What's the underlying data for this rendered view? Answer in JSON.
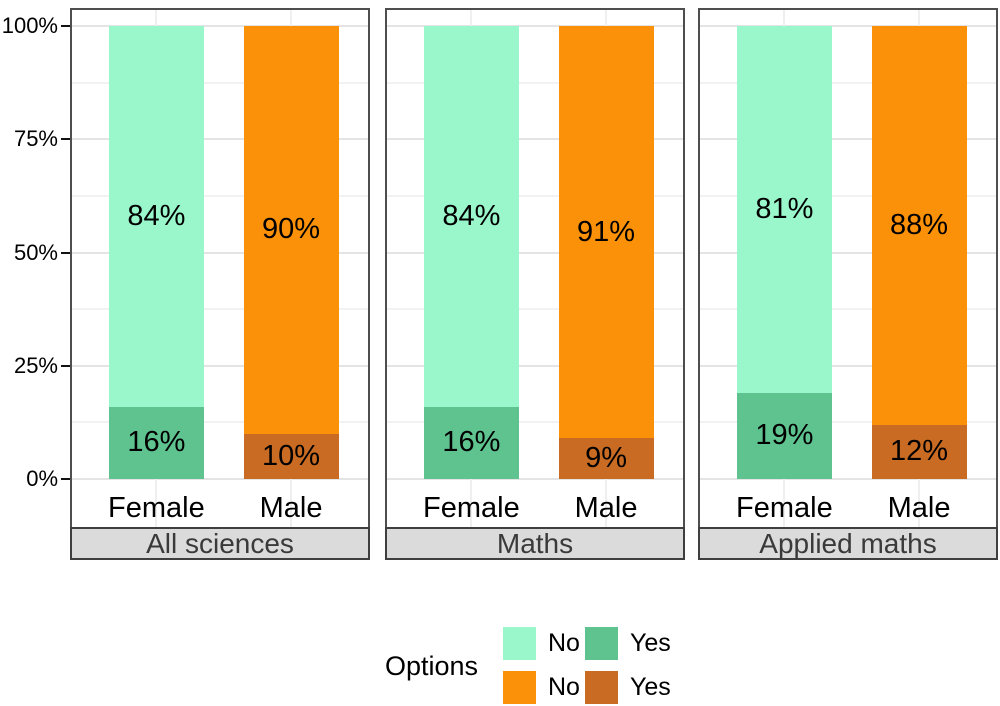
{
  "chart_data": {
    "type": "bar",
    "variant": "stacked-100-percent-faceted",
    "legend_title": "Options",
    "facets": [
      "All sciences",
      "Maths",
      "Applied maths"
    ],
    "categories": [
      "Female",
      "Male"
    ],
    "ylim": [
      0,
      100
    ],
    "yticks": [
      {
        "value": 0,
        "label": "0%"
      },
      {
        "value": 25,
        "label": "25%"
      },
      {
        "value": 50,
        "label": "50%"
      },
      {
        "value": 75,
        "label": "75%"
      },
      {
        "value": 100,
        "label": "100%"
      }
    ],
    "minor_ticks": [
      12.5,
      37.5,
      62.5,
      87.5
    ],
    "grid": true,
    "legend_position": "bottom",
    "panels": [
      {
        "facet": "All sciences",
        "bars": [
          {
            "category": "Female",
            "segments": [
              {
                "option": "Yes",
                "value": 16,
                "label": "16%",
                "color": "#5FC390"
              },
              {
                "option": "No",
                "value": 84,
                "label": "84%",
                "color": "#9AF7CB"
              }
            ]
          },
          {
            "category": "Male",
            "segments": [
              {
                "option": "Yes",
                "value": 10,
                "label": "10%",
                "color": "#C96B22"
              },
              {
                "option": "No",
                "value": 90,
                "label": "90%",
                "color": "#FB9109"
              }
            ]
          }
        ]
      },
      {
        "facet": "Maths",
        "bars": [
          {
            "category": "Female",
            "segments": [
              {
                "option": "Yes",
                "value": 16,
                "label": "16%",
                "color": "#5FC390"
              },
              {
                "option": "No",
                "value": 84,
                "label": "84%",
                "color": "#9AF7CB"
              }
            ]
          },
          {
            "category": "Male",
            "segments": [
              {
                "option": "Yes",
                "value": 9,
                "label": "9%",
                "color": "#C96B22"
              },
              {
                "option": "No",
                "value": 91,
                "label": "91%",
                "color": "#FB9109"
              }
            ]
          }
        ]
      },
      {
        "facet": "Applied maths",
        "bars": [
          {
            "category": "Female",
            "segments": [
              {
                "option": "Yes",
                "value": 19,
                "label": "19%",
                "color": "#5FC390"
              },
              {
                "option": "No",
                "value": 81,
                "label": "81%",
                "color": "#9AF7CB"
              }
            ]
          },
          {
            "category": "Male",
            "segments": [
              {
                "option": "Yes",
                "value": 12,
                "label": "12%",
                "color": "#C96B22"
              },
              {
                "option": "No",
                "value": 88,
                "label": "88%",
                "color": "#FB9109"
              }
            ]
          }
        ]
      }
    ]
  },
  "legend": {
    "title": "Options",
    "rows": [
      {
        "items": [
          {
            "label": "No",
            "color": "#9AF7CB"
          },
          {
            "label": "Yes",
            "color": "#5FC390"
          }
        ]
      },
      {
        "items": [
          {
            "label": "No",
            "color": "#FB9109"
          },
          {
            "label": "Yes",
            "color": "#C96B22"
          }
        ]
      }
    ]
  },
  "colors": {
    "background": "#FFFFFF",
    "panel_border": "#4E4E4E",
    "strip_bg": "#DBDBDB",
    "strip_border": "#3F3F3F",
    "strip_text": "#3A3A3A",
    "grid_major": "#E4E4E4",
    "grid_minor": "#F2F2F2",
    "grid_vertical": "#EFEFEF",
    "axis_tick": "#111111",
    "text": "#000000"
  }
}
